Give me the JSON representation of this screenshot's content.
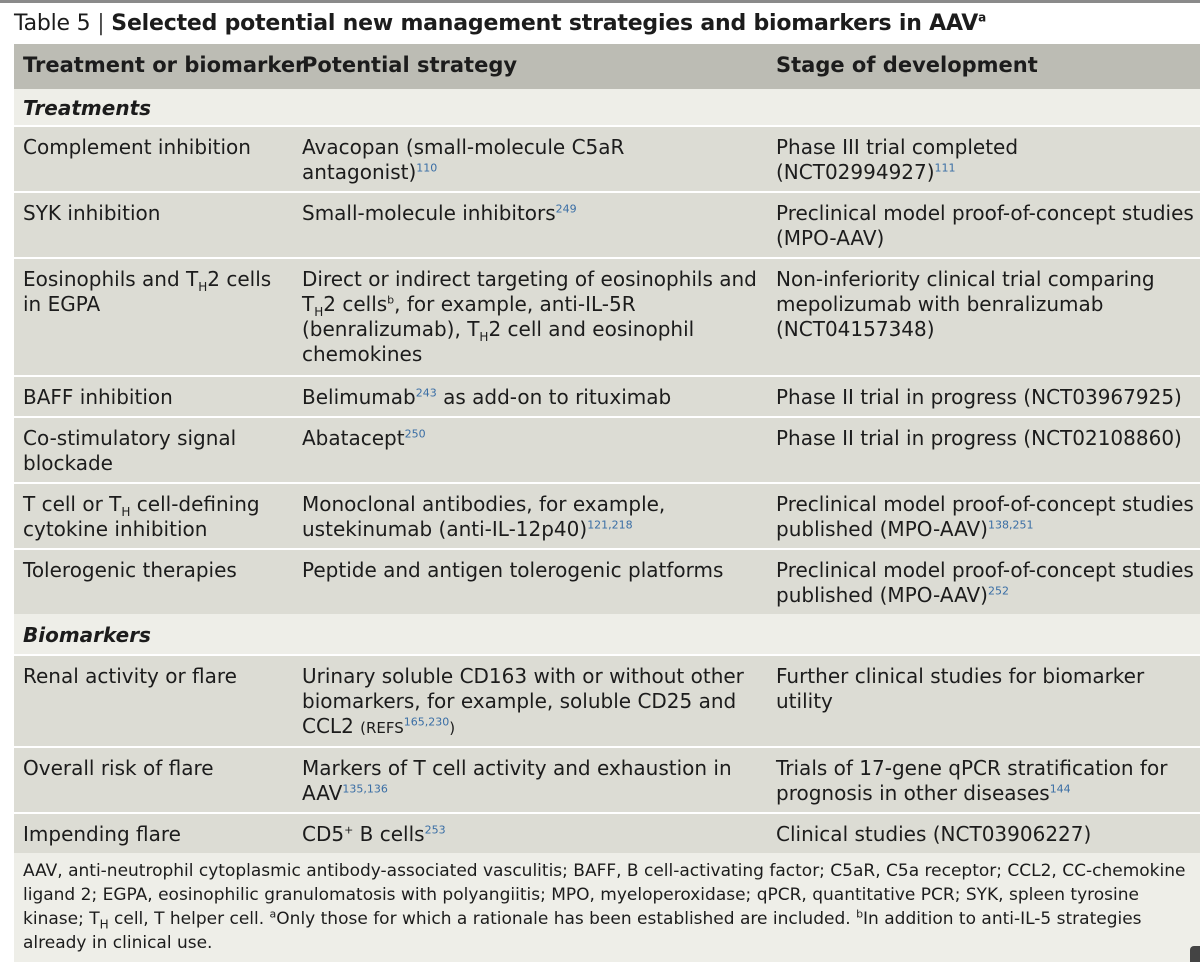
{
  "title": {
    "number": "Table 5",
    "separator": "|",
    "text": "Selected potential new management strategies and biomarkers in AAV",
    "sup": "a"
  },
  "headers": [
    "Treatment or biomarker",
    "Potential strategy",
    "Stage of development"
  ],
  "sections": [
    {
      "label": "Treatments"
    },
    {
      "label": "Biomarkers"
    }
  ],
  "rows": [
    {
      "c1": "Complement inhibition",
      "c2": "Avacopan (small-molecule C5aR antagonist)",
      "c2_ref": "110",
      "c3": "Phase III trial completed (NCT02994927)",
      "c3_ref": "111"
    },
    {
      "c1": "SYK inhibition",
      "c2": "Small-molecule inhibitors",
      "c2_ref": "249",
      "c3": "Preclinical model proof-of-concept studies (MPO-AAV)"
    },
    {
      "c1_a": "Eosinophils and T",
      "c1_sub": "H",
      "c1_b": "2 cells in EGPA",
      "c2_a": "Direct or indirect targeting of eosinophils and T",
      "c2_sub1": "H",
      "c2_b": "2 cells",
      "c2_supb": "b",
      "c2_c": ", for example, anti-IL-5R (benralizumab), T",
      "c2_sub2": "H",
      "c2_d": "2 cell and eosinophil chemokines",
      "c3": "Non-inferiority clinical trial comparing mepolizumab with benralizumab (NCT04157348)"
    },
    {
      "c1": "BAFF inhibition",
      "c2_a": "Belimumab",
      "c2_ref": "243",
      "c2_b": " as add-on to rituximab",
      "c3": "Phase II trial in progress (NCT03967925)"
    },
    {
      "c1": "Co-stimulatory signal blockade",
      "c2": "Abatacept",
      "c2_ref": "250",
      "c3": "Phase II trial in progress (NCT02108860)"
    },
    {
      "c1_a": "T cell or T",
      "c1_sub": "H",
      "c1_b": " cell-defining cytokine inhibition",
      "c2": "Monoclonal antibodies, for example, ustekinumab (anti-IL-12p40)",
      "c2_ref": "121,218",
      "c3": "Preclinical model proof-of-concept studies published (MPO-AAV)",
      "c3_ref": "138,251"
    },
    {
      "c1": "Tolerogenic therapies",
      "c2": "Peptide and antigen tolerogenic platforms",
      "c3": "Preclinical model proof-of-concept studies published (MPO-AAV)",
      "c3_ref": "252"
    },
    {
      "c1": "Renal activity or flare",
      "c2": "Urinary soluble CD163 with or without other biomarkers, for example, soluble CD25 and CCL2",
      "c2_refs_label": "(REFS",
      "c2_ref": "165,230",
      "c2_close": ")",
      "c3": "Further clinical studies for biomarker utility"
    },
    {
      "c1": "Overall risk of flare",
      "c2": "Markers of T cell activity and exhaustion in AAV",
      "c2_ref": "135,136",
      "c3": "Trials of 17-gene qPCR stratification for prognosis in other diseases",
      "c3_ref": "144"
    },
    {
      "c1": "Impending flare",
      "c2_a": "CD5",
      "c2_supb": "+",
      "c2_b": " B cells",
      "c2_ref": "253",
      "c3": "Clinical studies (NCT03906227)"
    }
  ],
  "footnote": {
    "a": "AAV, anti-neutrophil cytoplasmic antibody-associated vasculitis; BAFF, B cell-activating factor; C5aR, C5a receptor; CCL2, CC-chemokine ligand 2; EGPA, eosinophilic granulomatosis with polyangiitis; MPO, myeloperoxidase; qPCR, quantitative PCR; SYK, spleen tyrosine kinase; T",
    "sub": "H",
    "b": " cell, T helper cell. ",
    "sup_a": "a",
    "c": "Only those for which a rationale has been established are included. ",
    "sup_b": "b",
    "d": "In addition to anti-IL-5 strategies already in clinical use."
  },
  "colors": {
    "header": "#bcbcb4",
    "row": "#dcdcd4",
    "band": "#eeeee8",
    "ref": "#3a6ea5"
  }
}
